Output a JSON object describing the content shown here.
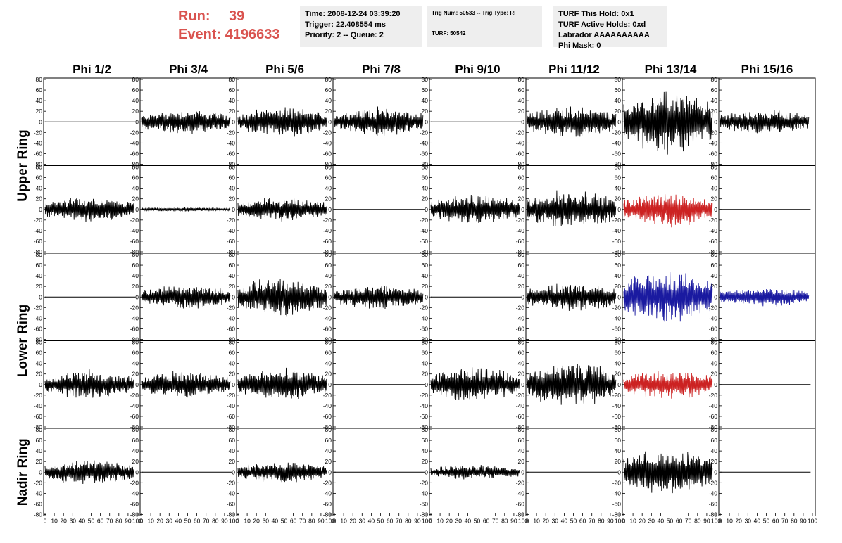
{
  "header": {
    "run_label": "Run:",
    "run_value": "39",
    "event_label": "Event:",
    "event_value": "4196633",
    "time_line": "Time: 2008-12-24 03:39:20",
    "trigger_line": "Trigger: 22.408554 ms",
    "priority_line": "Priority: 2 -- Queue: 2",
    "trig_num_line": "Trig Num: 50533 -- Trig Type: RF",
    "turf_line": "TURF: 50542",
    "turf_hold_line": "TURF This Hold: 0x1",
    "turf_active_line": "TURF Active Holds: 0xd",
    "labrador_line": "Labrador AAAAAAAAAA",
    "phi_mask_line": "Phi Mask: 0"
  },
  "chart_data": {
    "type": "line",
    "column_titles": [
      "Phi 1/2",
      "Phi 3/4",
      "Phi 5/6",
      "Phi 7/8",
      "Phi 9/10",
      "Phi 11/12",
      "Phi 13/14",
      "Phi 15/16"
    ],
    "ring_labels": [
      {
        "label": "Upper Ring",
        "rows": [
          0,
          1
        ]
      },
      {
        "label": "Lower Ring",
        "rows": [
          2,
          3
        ]
      },
      {
        "label": "Nadir Ring",
        "rows": [
          4
        ]
      }
    ],
    "xlim": [
      0,
      100
    ],
    "ylim": [
      -80,
      80
    ],
    "x_ticks": [
      0,
      10,
      20,
      30,
      40,
      50,
      60,
      70,
      80,
      90,
      100
    ],
    "y_ticks": [
      -80,
      -60,
      -40,
      -20,
      0,
      20,
      40,
      60,
      80
    ],
    "colors": {
      "normal": "#000000",
      "red": "#cc2222",
      "blue": "#1a1aa0"
    },
    "note": "amp = approximate peak amplitude of the trace in mV-like units (flat traces amp 0); color per panel",
    "panels": [
      [
        {
          "amp": 0,
          "color": "normal"
        },
        {
          "amp": 25,
          "color": "normal"
        },
        {
          "amp": 30,
          "color": "normal"
        },
        {
          "amp": 30,
          "color": "normal"
        },
        {
          "amp": 0,
          "color": "normal"
        },
        {
          "amp": 32,
          "color": "normal"
        },
        {
          "amp": 65,
          "color": "normal"
        },
        {
          "amp": 25,
          "color": "normal"
        }
      ],
      [
        {
          "amp": 25,
          "color": "normal"
        },
        {
          "amp": 4,
          "color": "normal"
        },
        {
          "amp": 25,
          "color": "normal"
        },
        {
          "amp": 0,
          "color": "normal"
        },
        {
          "amp": 30,
          "color": "normal"
        },
        {
          "amp": 40,
          "color": "normal"
        },
        {
          "amp": 35,
          "color": "red"
        },
        {
          "amp": 0,
          "color": "normal"
        }
      ],
      [
        {
          "amp": 0,
          "color": "normal"
        },
        {
          "amp": 25,
          "color": "normal"
        },
        {
          "amp": 40,
          "color": "normal"
        },
        {
          "amp": 25,
          "color": "normal"
        },
        {
          "amp": 0,
          "color": "normal"
        },
        {
          "amp": 30,
          "color": "normal"
        },
        {
          "amp": 55,
          "color": "blue"
        },
        {
          "amp": 20,
          "color": "blue"
        }
      ],
      [
        {
          "amp": 30,
          "color": "normal"
        },
        {
          "amp": 28,
          "color": "normal"
        },
        {
          "amp": 32,
          "color": "normal"
        },
        {
          "amp": 0,
          "color": "normal"
        },
        {
          "amp": 35,
          "color": "normal"
        },
        {
          "amp": 45,
          "color": "normal"
        },
        {
          "amp": 30,
          "color": "red"
        },
        {
          "amp": 0,
          "color": "normal"
        }
      ],
      [
        {
          "amp": 25,
          "color": "normal"
        },
        {
          "amp": 0,
          "color": "normal"
        },
        {
          "amp": 22,
          "color": "normal"
        },
        {
          "amp": 0,
          "color": "normal"
        },
        {
          "amp": 15,
          "color": "normal"
        },
        {
          "amp": 0,
          "color": "normal"
        },
        {
          "amp": 50,
          "color": "normal"
        },
        {
          "amp": 0,
          "color": "normal"
        }
      ]
    ]
  }
}
